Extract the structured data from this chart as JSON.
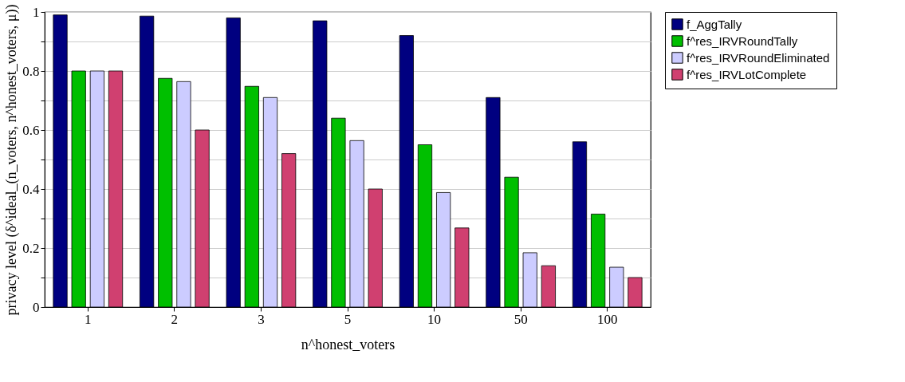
{
  "chart_data": {
    "type": "bar",
    "xlabel": "n^honest_voters",
    "ylabel": "privacy level (δ^ideal_(n_voters, n^honest_voters, μ))",
    "categories": [
      "1",
      "2",
      "3",
      "5",
      "10",
      "50",
      "100"
    ],
    "series": [
      {
        "name": "f_AggTally",
        "color": "#000080",
        "values": [
          0.99,
          0.986,
          0.98,
          0.97,
          0.92,
          0.71,
          0.56
        ]
      },
      {
        "name": "f^res_IRVRoundTally",
        "color": "#00bf00",
        "values": [
          0.8,
          0.775,
          0.748,
          0.64,
          0.55,
          0.44,
          0.315
        ]
      },
      {
        "name": "f^res_IRVRoundEliminated",
        "color": "#ccccff",
        "values": [
          0.8,
          0.764,
          0.71,
          0.564,
          0.388,
          0.184,
          0.135
        ]
      },
      {
        "name": "f^res_IRVLotComplete",
        "color": "#d04070",
        "values": [
          0.8,
          0.6,
          0.52,
          0.4,
          0.268,
          0.14,
          0.1
        ]
      }
    ],
    "ylim": [
      0,
      1
    ],
    "yticks": [
      0,
      {
        "value": 0.1,
        "label": null
      },
      0.2,
      {
        "value": 0.3,
        "label": null
      },
      0.4,
      {
        "value": 0.5,
        "label": null
      },
      0.6,
      {
        "value": 0.7,
        "label": null
      },
      0.8,
      {
        "value": 0.9,
        "label": null
      },
      1
    ],
    "grid": "y",
    "legend": "right"
  }
}
